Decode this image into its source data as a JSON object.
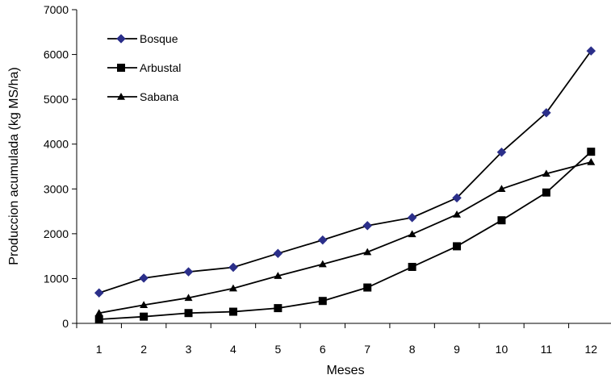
{
  "chart_data": {
    "type": "line",
    "categories": [
      "1",
      "2",
      "3",
      "4",
      "5",
      "6",
      "7",
      "8",
      "9",
      "10",
      "11",
      "12"
    ],
    "xlabel": "Meses",
    "ylabel": "Produccion acumulada (kg MS/ha)",
    "ylim": [
      0,
      7000
    ],
    "yticks": [
      "0",
      "1000",
      "2000",
      "3000",
      "4000",
      "5000",
      "6000",
      "7000"
    ],
    "grid": false,
    "legend_position": "top-left",
    "series": [
      {
        "name": "Bosque",
        "marker": "diamond",
        "color": "#2b2f8a",
        "values": [
          680,
          1010,
          1150,
          1250,
          1560,
          1860,
          2180,
          2360,
          2800,
          3820,
          4700,
          6080
        ]
      },
      {
        "name": "Arbustal",
        "marker": "square",
        "color": "#000000",
        "values": [
          90,
          150,
          230,
          260,
          340,
          500,
          800,
          1260,
          1720,
          2300,
          2920,
          3830
        ]
      },
      {
        "name": "Sabana",
        "marker": "triangle",
        "color": "#000000",
        "values": [
          230,
          410,
          570,
          780,
          1060,
          1320,
          1590,
          1990,
          2430,
          3000,
          3340,
          3600
        ]
      }
    ]
  }
}
